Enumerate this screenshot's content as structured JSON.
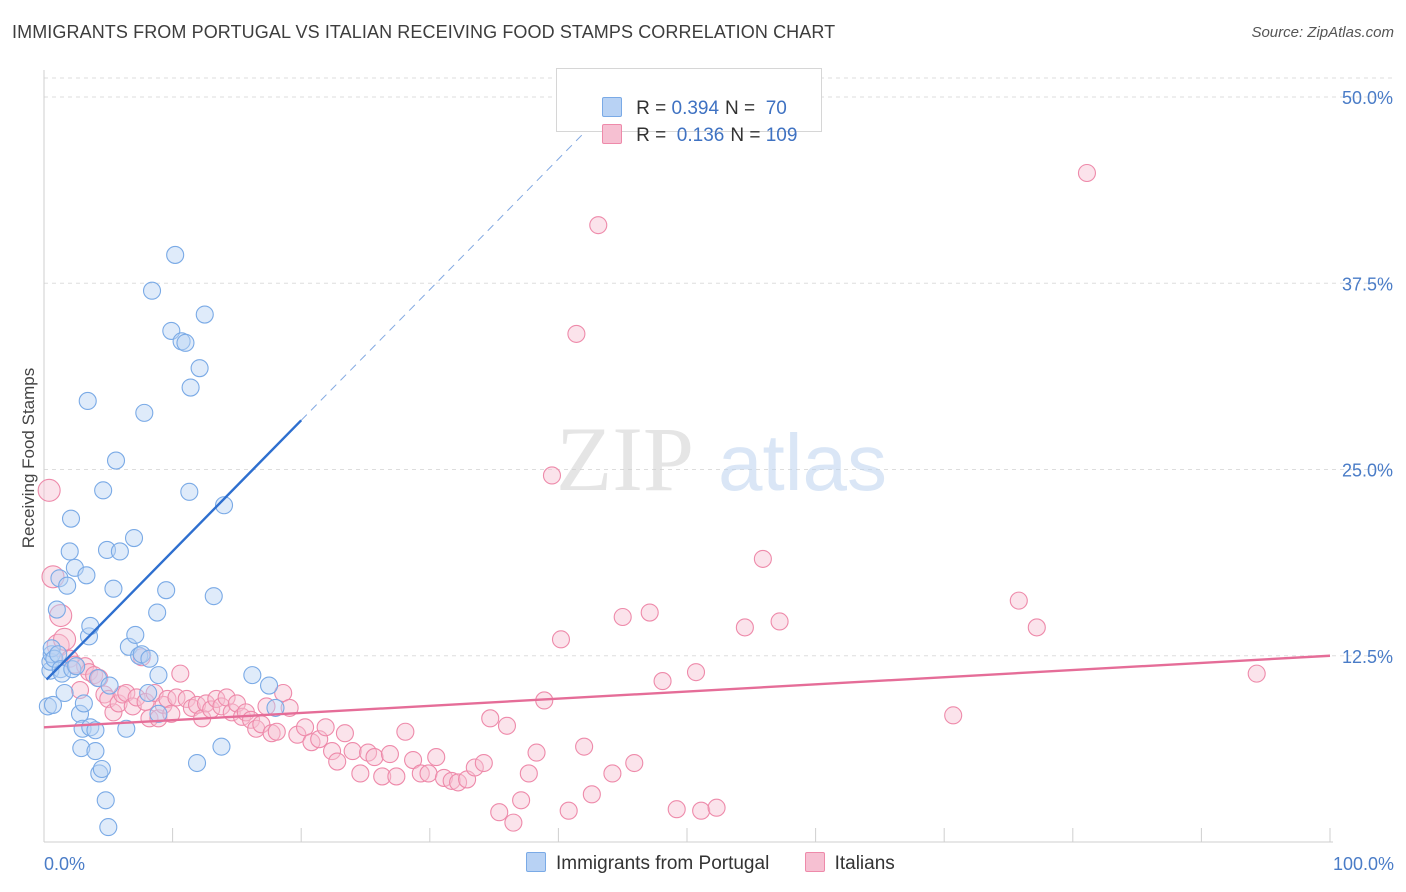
{
  "title": "IMMIGRANTS FROM PORTUGAL VS ITALIAN RECEIVING FOOD STAMPS CORRELATION CHART",
  "source": "Source: ZipAtlas.com",
  "watermark": {
    "zip": "ZIP",
    "atlas": "atlas"
  },
  "colors": {
    "blue": "#7aaae6",
    "blue_fill": "#b8d2f4",
    "blue_line": "#2e6fcf",
    "pink": "#ee8aaa",
    "pink_fill": "#f6c0d2",
    "pink_line": "#e56d98",
    "tick": "#4a7cc7"
  },
  "legend": {
    "rows": [
      {
        "r_label": "R = ",
        "r_value": "0.394",
        "n_label": "N = ",
        "n_value": " 70"
      },
      {
        "r_label": "R = ",
        "r_value": " 0.136",
        "n_label": "N = ",
        "n_value": "109"
      }
    ]
  },
  "chart_data": {
    "type": "scatter",
    "xlabel": "",
    "ylabel": "Receiving Food Stamps",
    "xlim": [
      0,
      100
    ],
    "ylim": [
      0,
      50
    ],
    "x_ticks": [
      "0.0%",
      "100.0%"
    ],
    "y_ticks": [
      {
        "value": 50,
        "label": "50.0%"
      },
      {
        "value": 37.5,
        "label": "37.5%"
      },
      {
        "value": 25,
        "label": "25.0%"
      },
      {
        "value": 12.5,
        "label": "12.5%"
      }
    ],
    "series": [
      {
        "name": "Immigrants from Portugal",
        "R": 0.394,
        "N": 70,
        "trend": {
          "x0": 0.2,
          "y0": 10.9,
          "x1": 20,
          "y1": 28.3,
          "dash_to_x": 42,
          "dash_to_y": 47.6
        },
        "points": [
          [
            0.3,
            9.1
          ],
          [
            0.5,
            11.5
          ],
          [
            0.5,
            12.1
          ],
          [
            0.6,
            12.6
          ],
          [
            0.6,
            13.0
          ],
          [
            0.7,
            9.2
          ],
          [
            0.8,
            12.3
          ],
          [
            1.0,
            15.6
          ],
          [
            1.1,
            12.6
          ],
          [
            1.2,
            17.7
          ],
          [
            1.3,
            11.6
          ],
          [
            1.4,
            11.3
          ],
          [
            1.6,
            10.0
          ],
          [
            1.8,
            17.2
          ],
          [
            2.0,
            19.5
          ],
          [
            2.1,
            21.7
          ],
          [
            2.2,
            11.6
          ],
          [
            2.4,
            18.4
          ],
          [
            2.5,
            11.8
          ],
          [
            2.8,
            8.6
          ],
          [
            2.9,
            6.3
          ],
          [
            3.0,
            7.6
          ],
          [
            3.1,
            9.3
          ],
          [
            3.3,
            17.9
          ],
          [
            3.4,
            29.6
          ],
          [
            3.5,
            13.8
          ],
          [
            3.6,
            14.5
          ],
          [
            3.6,
            7.7
          ],
          [
            4.0,
            6.1
          ],
          [
            4.0,
            7.5
          ],
          [
            4.2,
            11.0
          ],
          [
            4.3,
            4.6
          ],
          [
            4.5,
            4.9
          ],
          [
            4.6,
            23.6
          ],
          [
            4.8,
            2.8
          ],
          [
            4.9,
            19.6
          ],
          [
            5.1,
            10.5
          ],
          [
            5.4,
            17.0
          ],
          [
            5.6,
            25.6
          ],
          [
            5.9,
            19.5
          ],
          [
            6.4,
            7.6
          ],
          [
            6.6,
            13.1
          ],
          [
            7.0,
            20.4
          ],
          [
            7.1,
            13.9
          ],
          [
            7.4,
            12.5
          ],
          [
            7.6,
            12.6
          ],
          [
            7.8,
            28.8
          ],
          [
            8.1,
            10.0
          ],
          [
            8.2,
            12.3
          ],
          [
            8.4,
            37.0
          ],
          [
            8.8,
            15.4
          ],
          [
            8.9,
            11.2
          ],
          [
            8.9,
            8.6
          ],
          [
            9.5,
            16.9
          ],
          [
            9.9,
            34.3
          ],
          [
            10.2,
            39.4
          ],
          [
            10.7,
            33.6
          ],
          [
            11.0,
            33.5
          ],
          [
            11.3,
            23.5
          ],
          [
            11.4,
            30.5
          ],
          [
            11.9,
            5.3
          ],
          [
            12.1,
            31.8
          ],
          [
            12.5,
            35.4
          ],
          [
            13.2,
            16.5
          ],
          [
            13.8,
            6.4
          ],
          [
            14.0,
            22.6
          ],
          [
            16.2,
            11.2
          ],
          [
            17.5,
            10.5
          ],
          [
            18.0,
            9.0
          ],
          [
            5.0,
            1.0
          ]
        ]
      },
      {
        "name": "Italians",
        "R": 0.136,
        "N": 109,
        "trend": {
          "x0": 0,
          "y0": 7.7,
          "x1": 100,
          "y1": 12.5
        },
        "points": [
          [
            0.4,
            23.6
          ],
          [
            0.7,
            17.8
          ],
          [
            1.1,
            13.2
          ],
          [
            1.3,
            15.2
          ],
          [
            1.6,
            13.6
          ],
          [
            2.0,
            12.3
          ],
          [
            2.4,
            11.9
          ],
          [
            2.8,
            10.2
          ],
          [
            3.2,
            11.8
          ],
          [
            3.5,
            11.4
          ],
          [
            3.9,
            11.2
          ],
          [
            4.3,
            11.0
          ],
          [
            4.7,
            9.9
          ],
          [
            5.0,
            9.6
          ],
          [
            5.4,
            8.7
          ],
          [
            5.8,
            9.3
          ],
          [
            6.1,
            9.9
          ],
          [
            6.4,
            10.0
          ],
          [
            6.9,
            9.1
          ],
          [
            7.2,
            9.7
          ],
          [
            7.6,
            12.4
          ],
          [
            7.9,
            9.4
          ],
          [
            8.2,
            8.3
          ],
          [
            8.6,
            10.0
          ],
          [
            8.9,
            8.3
          ],
          [
            9.3,
            9.2
          ],
          [
            9.6,
            9.6
          ],
          [
            9.9,
            8.6
          ],
          [
            10.3,
            9.7
          ],
          [
            10.6,
            11.3
          ],
          [
            11.1,
            9.6
          ],
          [
            11.5,
            9.0
          ],
          [
            11.9,
            9.2
          ],
          [
            12.3,
            8.3
          ],
          [
            12.6,
            9.3
          ],
          [
            13.0,
            8.9
          ],
          [
            13.4,
            9.6
          ],
          [
            13.8,
            9.1
          ],
          [
            14.2,
            9.7
          ],
          [
            14.6,
            8.7
          ],
          [
            15.0,
            9.3
          ],
          [
            15.4,
            8.4
          ],
          [
            15.7,
            8.7
          ],
          [
            16.1,
            8.2
          ],
          [
            16.5,
            7.6
          ],
          [
            16.9,
            7.9
          ],
          [
            17.3,
            9.1
          ],
          [
            17.7,
            7.3
          ],
          [
            18.1,
            7.4
          ],
          [
            18.6,
            10.0
          ],
          [
            19.1,
            9.0
          ],
          [
            19.7,
            7.2
          ],
          [
            20.3,
            7.7
          ],
          [
            20.8,
            6.7
          ],
          [
            21.4,
            6.9
          ],
          [
            21.9,
            7.7
          ],
          [
            22.4,
            6.1
          ],
          [
            22.8,
            5.4
          ],
          [
            23.4,
            7.3
          ],
          [
            24.0,
            6.1
          ],
          [
            24.6,
            4.6
          ],
          [
            25.2,
            6.0
          ],
          [
            25.7,
            5.7
          ],
          [
            26.3,
            4.4
          ],
          [
            26.9,
            5.9
          ],
          [
            27.4,
            4.4
          ],
          [
            28.1,
            7.4
          ],
          [
            28.7,
            5.5
          ],
          [
            29.3,
            4.6
          ],
          [
            29.9,
            4.6
          ],
          [
            30.5,
            5.7
          ],
          [
            31.1,
            4.3
          ],
          [
            31.7,
            4.1
          ],
          [
            32.2,
            4.0
          ],
          [
            32.9,
            4.2
          ],
          [
            33.5,
            5.0
          ],
          [
            34.2,
            5.3
          ],
          [
            34.7,
            8.3
          ],
          [
            35.4,
            2.0
          ],
          [
            36.0,
            7.8
          ],
          [
            36.5,
            1.3
          ],
          [
            37.1,
            2.8
          ],
          [
            37.7,
            4.6
          ],
          [
            38.3,
            6.0
          ],
          [
            38.9,
            9.5
          ],
          [
            39.5,
            24.6
          ],
          [
            40.2,
            13.6
          ],
          [
            40.8,
            2.1
          ],
          [
            41.4,
            34.1
          ],
          [
            42.0,
            6.4
          ],
          [
            42.6,
            3.2
          ],
          [
            43.1,
            41.4
          ],
          [
            44.2,
            4.6
          ],
          [
            45.0,
            15.1
          ],
          [
            45.9,
            5.3
          ],
          [
            47.1,
            15.4
          ],
          [
            48.1,
            10.8
          ],
          [
            49.2,
            2.2
          ],
          [
            50.7,
            11.4
          ],
          [
            51.1,
            2.1
          ],
          [
            52.3,
            2.3
          ],
          [
            54.5,
            14.4
          ],
          [
            55.9,
            19.0
          ],
          [
            57.2,
            14.8
          ],
          [
            70.7,
            8.5
          ],
          [
            75.8,
            16.2
          ],
          [
            77.2,
            14.4
          ],
          [
            81.1,
            44.9
          ],
          [
            94.3,
            11.3
          ]
        ]
      }
    ]
  }
}
